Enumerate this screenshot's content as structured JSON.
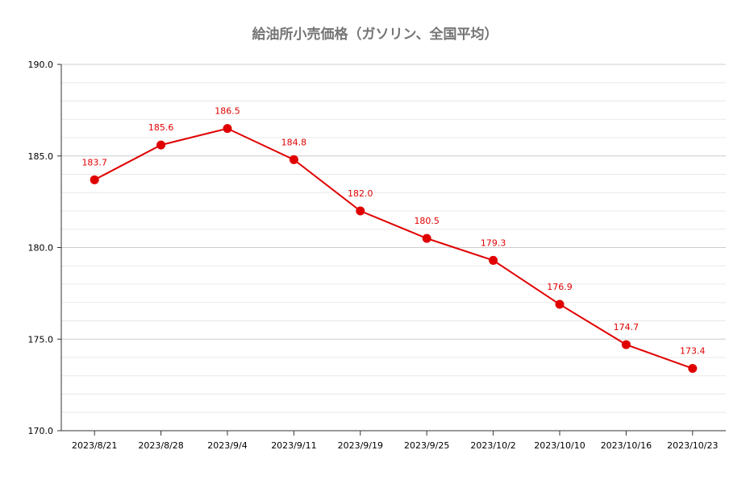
{
  "chart_data": {
    "type": "line",
    "title": "給油所小売価格（ガソリン、全国平均）",
    "xlabel": "",
    "ylabel": "",
    "categories": [
      "2023/8/21",
      "2023/8/28",
      "2023/9/4",
      "2023/9/11",
      "2023/9/19",
      "2023/9/25",
      "2023/10/2",
      "2023/10/10",
      "2023/10/16",
      "2023/10/23"
    ],
    "series": [
      {
        "values": [
          183.7,
          185.6,
          186.5,
          184.8,
          182.0,
          180.5,
          179.3,
          176.9,
          174.7,
          173.4
        ],
        "value_labels": [
          "183.7",
          "185.6",
          "186.5",
          "184.8",
          "182.0",
          "180.5",
          "179.3",
          "176.9",
          "174.7",
          "173.4"
        ],
        "color": "#e00000"
      }
    ],
    "ylim": [
      170,
      190
    ],
    "y_ticks": [
      "170.0",
      "175.0",
      "180.0",
      "185.0",
      "190.0"
    ],
    "y_tick_values": [
      170,
      175,
      180,
      185,
      190
    ],
    "minor_grid_step": 1,
    "grid": true,
    "legend": "none",
    "colors": {
      "line": "#e00000",
      "grid": "#cccccc",
      "minor_grid": "#e8e8e8",
      "axis": "#333333",
      "title": "#757575"
    }
  }
}
